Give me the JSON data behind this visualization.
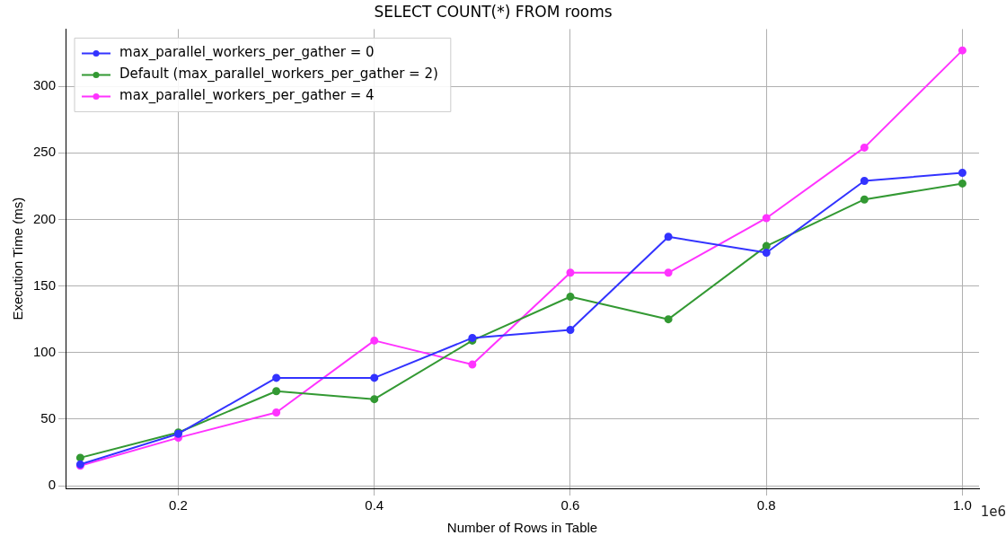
{
  "chart_data": {
    "type": "line",
    "title": "SELECT COUNT(*) FROM rooms",
    "xlabel": "Number of Rows in Table",
    "ylabel": "Execution Time (ms)",
    "x": [
      0.1,
      0.2,
      0.3,
      0.4,
      0.5,
      0.6,
      0.7,
      0.8,
      0.9,
      1.0
    ],
    "series": [
      {
        "name": "max_parallel_workers_per_gather = 0",
        "color": "#3333ff",
        "values": [
          16,
          39,
          81,
          81,
          111,
          117,
          187,
          175,
          229,
          235
        ]
      },
      {
        "name": "Default (max_parallel_workers_per_gather = 2)",
        "color": "#339933",
        "values": [
          21,
          40,
          71,
          65,
          109,
          142,
          125,
          180,
          215,
          227
        ]
      },
      {
        "name": "max_parallel_workers_per_gather = 4",
        "color": "#ff33ff",
        "values": [
          15,
          36,
          55,
          109,
          91,
          160,
          160,
          201,
          254,
          327
        ]
      }
    ],
    "xlim": [
      0.085,
      1.017
    ],
    "xticks": [
      0.2,
      0.4,
      0.6,
      0.8,
      {
        "value": 1.0,
        "label": "1.0"
      }
    ],
    "ylim": [
      -2,
      343
    ],
    "yticks": [
      0,
      50,
      100,
      150,
      200,
      250,
      300
    ],
    "annotations": [
      "1e6"
    ],
    "grid": true,
    "legend": "top left",
    "marker": "circle",
    "line_style": "solid"
  }
}
